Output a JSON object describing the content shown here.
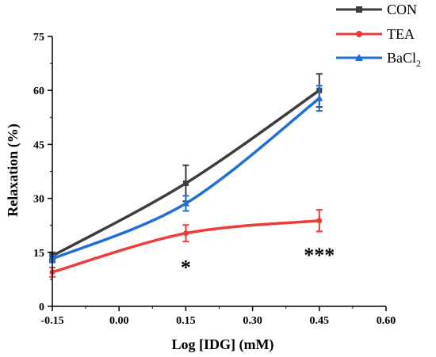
{
  "chart_data": {
    "type": "line",
    "xlabel": "Log [IDG] (mM)",
    "ylabel": "Relaxation (%)",
    "xlim": [
      -0.15,
      0.6
    ],
    "ylim": [
      0,
      75
    ],
    "xticks": [
      -0.15,
      0.0,
      0.15,
      0.3,
      0.45,
      0.6
    ],
    "xtick_labels": [
      "-0.15",
      "0.00",
      "0.15",
      "0.30",
      "0.45",
      "0.60"
    ],
    "yticks": [
      0,
      15,
      30,
      45,
      60,
      75
    ],
    "ytick_labels": [
      "0",
      "15",
      "30",
      "45",
      "60",
      "75"
    ],
    "grid": false,
    "legend_position": "top-right",
    "series": [
      {
        "name": "CON",
        "marker": "square",
        "color": "#3d3d3d",
        "x": [
          -0.15,
          0.15,
          0.45
        ],
        "y": [
          14.0,
          34.2,
          60.0
        ],
        "err": [
          1.0,
          5.0,
          4.6
        ]
      },
      {
        "name": "TEA",
        "marker": "circle",
        "color": "#ee3b3b",
        "x": [
          -0.15,
          0.15,
          0.45
        ],
        "y": [
          9.5,
          20.3,
          23.8
        ],
        "err": [
          1.3,
          2.3,
          3.0
        ]
      },
      {
        "name": "BaCl2",
        "name_main": "BaCl",
        "name_sub": "2",
        "marker": "triangle",
        "color": "#1f6fd4",
        "x": [
          -0.15,
          0.15,
          0.45
        ],
        "y": [
          13.2,
          28.6,
          57.8
        ],
        "err": [
          1.0,
          2.1,
          3.5
        ]
      }
    ],
    "annotations": [
      {
        "text": "*",
        "x": 0.15,
        "y": 20.3
      },
      {
        "text": "***",
        "x": 0.45,
        "y": 23.8
      }
    ]
  }
}
